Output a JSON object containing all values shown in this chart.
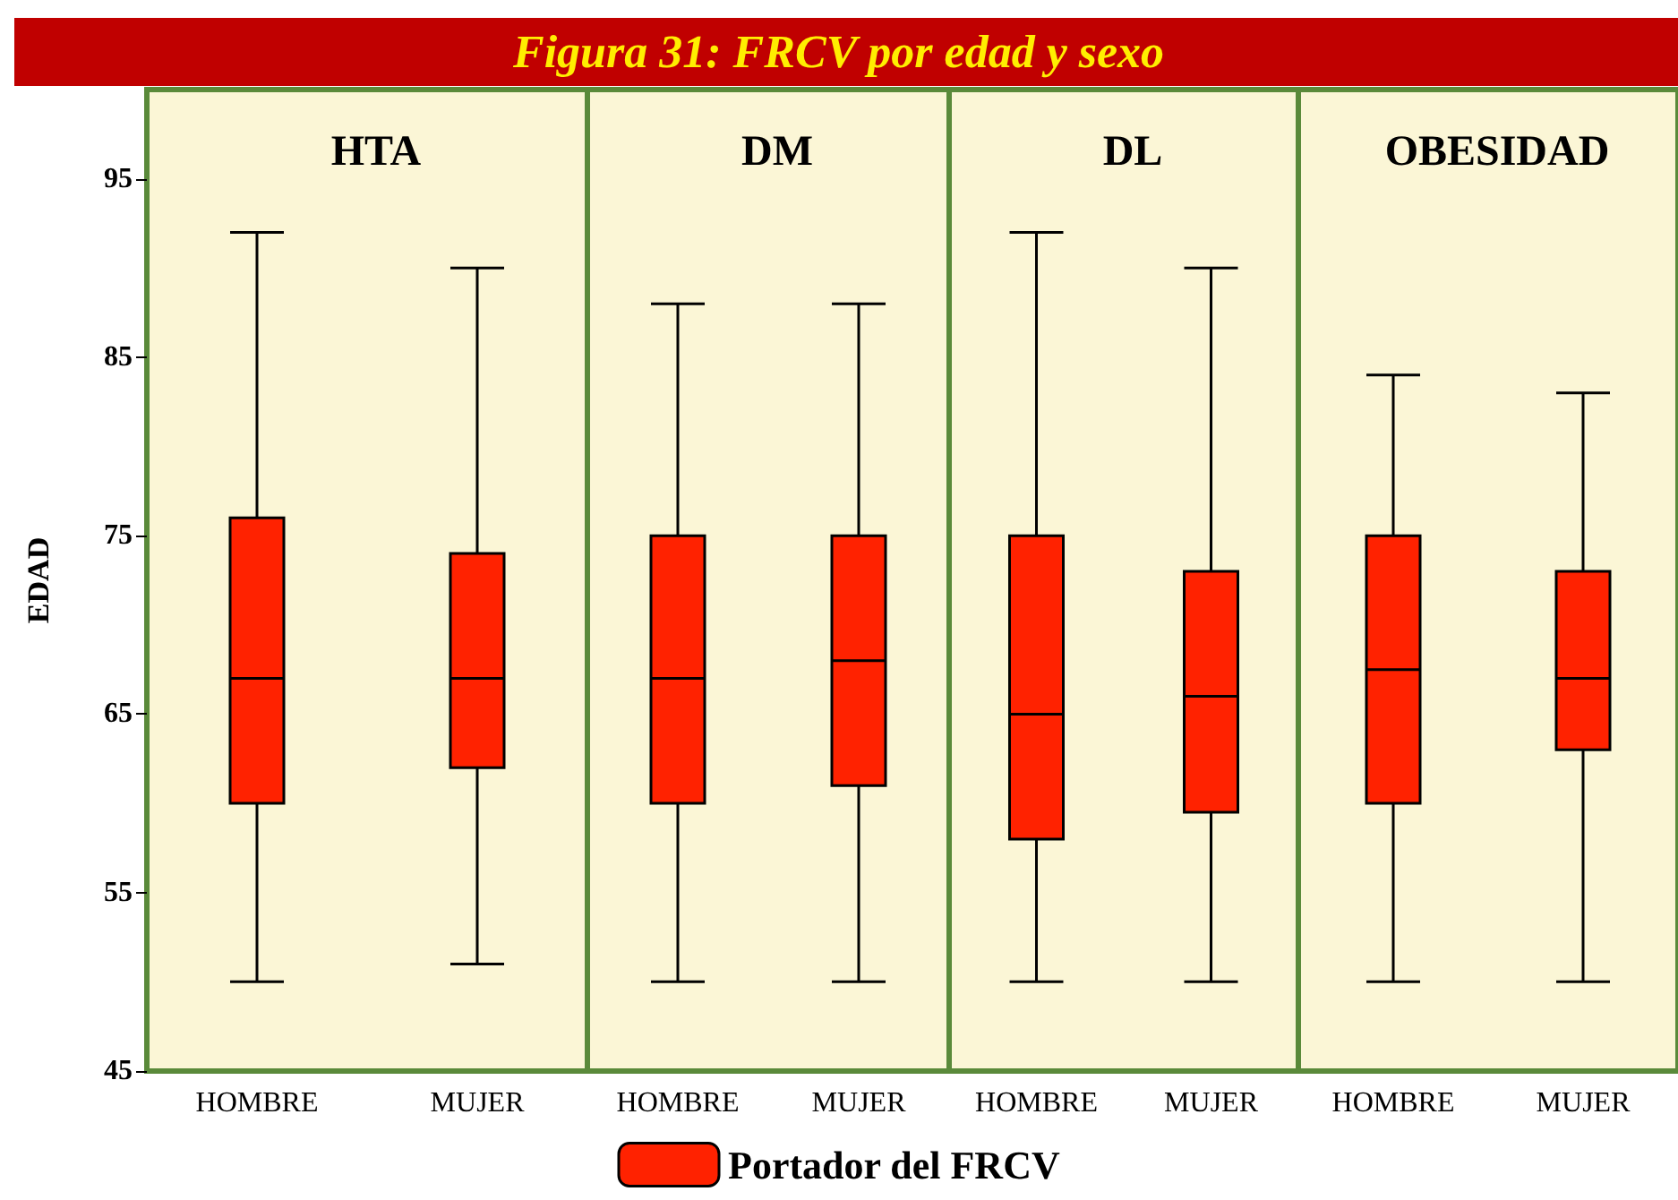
{
  "chart_data": [
    {
      "type": "box",
      "title": "HTA",
      "annotations": [
        "Figura 31: FRCV por edad y sexo"
      ],
      "ylabel": "EDAD",
      "categories": [
        "HOMBRE",
        "MUJER"
      ],
      "ylim": [
        45,
        100
      ],
      "yticks": [
        45,
        55,
        65,
        75,
        85,
        95
      ],
      "legend": "bottom",
      "series": [
        {
          "name": "Portador del FRCV",
          "color": "#ff2200",
          "boxes": [
            {
              "low": 50,
              "q1": 60,
              "median": 67,
              "q3": 76,
              "high": 92
            },
            {
              "low": 51,
              "q1": 62,
              "median": 67,
              "q3": 74,
              "high": 90
            }
          ]
        }
      ]
    },
    {
      "type": "box",
      "title": "DM",
      "categories": [
        "HOMBRE",
        "MUJER"
      ],
      "ylim": [
        45,
        100
      ],
      "yticks": [
        45,
        55,
        65,
        75,
        85,
        95
      ],
      "tick_labels": "x",
      "series": [
        {
          "color": "#ff2200",
          "boxes": [
            {
              "low": 50,
              "q1": 60,
              "median": 67,
              "q3": 75,
              "high": 88
            },
            {
              "low": 50,
              "q1": 61,
              "median": 68,
              "q3": 75,
              "high": 88
            }
          ]
        }
      ]
    },
    {
      "type": "box",
      "title": "DL",
      "categories": [
        "HOMBRE",
        "MUJER"
      ],
      "ylim": [
        45,
        100
      ],
      "yticks": [
        45,
        55,
        65,
        75,
        85,
        95
      ],
      "tick_labels": "x",
      "series": [
        {
          "color": "#ff2200",
          "boxes": [
            {
              "low": 50,
              "q1": 58,
              "median": 65,
              "q3": 75,
              "high": 92
            },
            {
              "low": 50,
              "q1": 59.5,
              "median": 66,
              "q3": 73,
              "high": 90
            }
          ]
        }
      ]
    },
    {
      "type": "box",
      "title": "OBESIDAD",
      "categories": [
        "HOMBRE",
        "MUJER"
      ],
      "ylim": [
        45,
        100
      ],
      "yticks": [
        45,
        55,
        65,
        75,
        85,
        95
      ],
      "tick_labels": "x",
      "series": [
        {
          "color": "#ff2200",
          "boxes": [
            {
              "low": 50,
              "q1": 60,
              "median": 67.5,
              "q3": 75,
              "high": 84
            },
            {
              "low": 50,
              "q1": 63,
              "median": 67,
              "q3": 73,
              "high": 83
            }
          ]
        }
      ]
    }
  ]
}
